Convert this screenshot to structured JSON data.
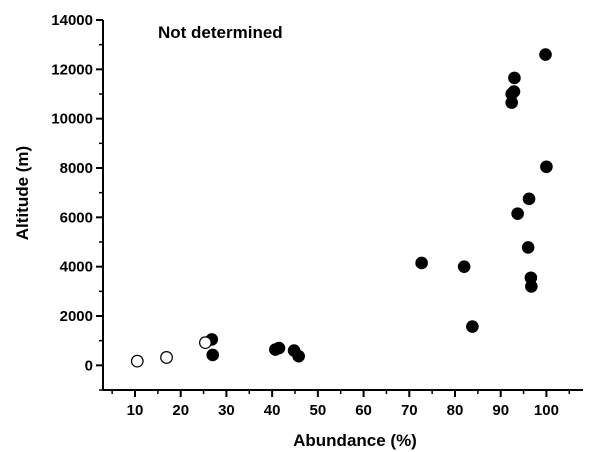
{
  "chart_data": {
    "type": "scatter",
    "annotation": "Not determined",
    "xlabel": "Abundance (%)",
    "ylabel": "Altitude (m)",
    "xlim": [
      3,
      108
    ],
    "ylim": [
      -1000,
      14000
    ],
    "xticks": [
      10,
      20,
      30,
      40,
      50,
      60,
      70,
      80,
      90,
      100
    ],
    "yticks": [
      0,
      2000,
      4000,
      6000,
      8000,
      10000,
      12000,
      14000
    ],
    "grid": false,
    "series": [
      {
        "marker": "filled-circle",
        "points": [
          {
            "x": 26.8,
            "y": 1050
          },
          {
            "x": 27.0,
            "y": 420
          },
          {
            "x": 40.7,
            "y": 640
          },
          {
            "x": 41.5,
            "y": 700
          },
          {
            "x": 44.8,
            "y": 600
          },
          {
            "x": 45.8,
            "y": 370
          },
          {
            "x": 72.7,
            "y": 4150
          },
          {
            "x": 82.0,
            "y": 4000
          },
          {
            "x": 83.8,
            "y": 1570
          },
          {
            "x": 92.4,
            "y": 11000
          },
          {
            "x": 92.4,
            "y": 10650
          },
          {
            "x": 92.9,
            "y": 11100
          },
          {
            "x": 93.0,
            "y": 11650
          },
          {
            "x": 93.7,
            "y": 6150
          },
          {
            "x": 96.0,
            "y": 4780
          },
          {
            "x": 96.2,
            "y": 6750
          },
          {
            "x": 96.6,
            "y": 3550
          },
          {
            "x": 96.7,
            "y": 3200
          },
          {
            "x": 99.8,
            "y": 12600
          },
          {
            "x": 100.0,
            "y": 8050
          }
        ]
      },
      {
        "marker": "open-circle",
        "points": [
          {
            "x": 10.5,
            "y": 170
          },
          {
            "x": 16.9,
            "y": 320
          },
          {
            "x": 25.4,
            "y": 920
          }
        ]
      }
    ]
  }
}
